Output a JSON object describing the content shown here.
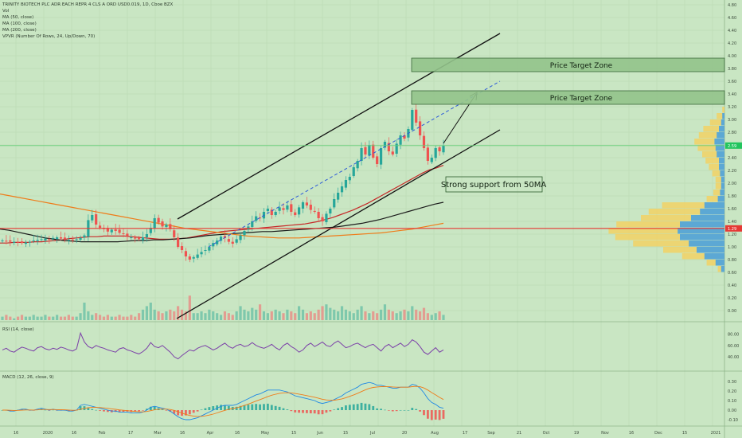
{
  "header": {
    "title": "TRINITY BIOTECH PLC ADR EACH REPR 4 CLS A ORD USD0.019, 1D, Cboe BZX",
    "indicators": [
      "Vol",
      "MA (50, close)",
      "MA (100, close)",
      "MA (200, close)",
      "VPVR (Number Of Rows, 24, Up/Down, 70)"
    ]
  },
  "panes": {
    "rsi_label": "RSI (14, close)",
    "macd_label": "MACD (12, 26, close, 9)"
  },
  "annotations": {
    "zone1": "Price Target Zone",
    "zone2": "Price Target Zone",
    "support": "Strong support from 50MA"
  },
  "price_badges": {
    "current": "2.59",
    "line": "1.29"
  },
  "colors": {
    "background": "#c9e6c3",
    "up": "#26a69a",
    "down": "#ef5350",
    "ma50": "#c62828",
    "ma100": "#1b1b1b",
    "ma200": "#ef7c1a",
    "rsi": "#7b3fa8",
    "macd": "#1e88e5",
    "signal": "#ef7c1a",
    "zone_fill": "#93c48b",
    "red_line": "#e53935",
    "green_line": "#66d07a"
  },
  "chart_data": {
    "type": "candlestick",
    "title": "TRINITY BIOTECH PLC ADR EACH REPR 4 CLS A ORD USD0.019, 1D, Cboe BZX",
    "price_axis": {
      "min": -0.2,
      "max": 4.8,
      "ticks": [
        "4.80",
        "4.60",
        "4.40",
        "4.20",
        "4.00",
        "3.80",
        "3.60",
        "3.40",
        "3.20",
        "3.00",
        "2.80",
        "2.60",
        "2.40",
        "2.20",
        "2.00",
        "1.80",
        "1.60",
        "1.40",
        "1.20",
        "1.00",
        "0.80",
        "0.60",
        "0.40",
        "0.20",
        "0.00"
      ]
    },
    "rsi_axis": {
      "ticks": [
        "80.00",
        "60.00",
        "40.00"
      ]
    },
    "macd_axis": {
      "ticks": [
        "0.30",
        "0.20",
        "0.10",
        "0.00",
        "-0.10"
      ]
    },
    "time_axis": [
      "16",
      "2020",
      "16",
      "Feb",
      "17",
      "Mar",
      "16",
      "Apr",
      "16",
      "May",
      "15",
      "Jun",
      "15",
      "Jul",
      "20",
      "Aug",
      "17",
      "Sep",
      "21",
      "Oct",
      "19",
      "Nov",
      "16",
      "Dec",
      "15",
      "2021"
    ],
    "closes": [
      1.1,
      1.09,
      1.08,
      1.08,
      1.07,
      1.06,
      1.07,
      1.08,
      1.1,
      1.11,
      1.12,
      1.13,
      1.12,
      1.14,
      1.15,
      1.13,
      1.12,
      1.11,
      1.1,
      1.12,
      1.14,
      1.18,
      1.42,
      1.5,
      1.35,
      1.3,
      1.28,
      1.24,
      1.27,
      1.25,
      1.22,
      1.2,
      1.17,
      1.15,
      1.13,
      1.12,
      1.15,
      1.2,
      1.3,
      1.45,
      1.38,
      1.32,
      1.35,
      1.28,
      1.15,
      1.0,
      0.95,
      0.85,
      0.8,
      0.84,
      0.88,
      0.92,
      0.95,
      1.0,
      1.06,
      1.1,
      1.16,
      1.14,
      1.08,
      1.05,
      1.12,
      1.18,
      1.25,
      1.32,
      1.4,
      1.48,
      1.45,
      1.55,
      1.6,
      1.5,
      1.55,
      1.62,
      1.58,
      1.65,
      1.55,
      1.5,
      1.62,
      1.7,
      1.65,
      1.58,
      1.55,
      1.45,
      1.4,
      1.52,
      1.6,
      1.75,
      1.85,
      1.95,
      2.05,
      2.1,
      2.25,
      2.35,
      2.55,
      2.45,
      2.6,
      2.4,
      2.3,
      2.55,
      2.65,
      2.5,
      2.45,
      2.62,
      2.75,
      2.7,
      2.85,
      3.15,
      2.95,
      2.75,
      2.55,
      2.35,
      2.4,
      2.55,
      2.5,
      2.59
    ],
    "ma50": [
      1.06,
      1.06,
      1.07,
      1.07,
      1.07,
      1.08,
      1.08,
      1.09,
      1.1,
      1.11,
      1.13,
      1.14,
      1.15,
      1.16,
      1.16,
      1.17,
      1.17,
      1.17,
      1.17,
      1.16,
      1.15,
      1.14,
      1.13,
      1.12,
      1.12,
      1.12,
      1.13,
      1.14,
      1.16,
      1.18,
      1.2,
      1.22,
      1.24,
      1.25,
      1.26,
      1.27,
      1.28,
      1.29,
      1.3,
      1.31,
      1.32,
      1.33,
      1.34,
      1.35,
      1.36,
      1.38,
      1.4,
      1.43,
      1.46,
      1.5,
      1.54,
      1.58,
      1.63,
      1.68,
      1.74,
      1.8,
      1.86,
      1.92,
      1.98,
      2.04,
      2.1,
      2.16,
      2.21,
      2.24,
      2.28
    ],
    "ma100": [
      1.28,
      1.26,
      1.23,
      1.2,
      1.17,
      1.14,
      1.12,
      1.1,
      1.09,
      1.08,
      1.08,
      1.08,
      1.08,
      1.08,
      1.09,
      1.1,
      1.1,
      1.11,
      1.11,
      1.12,
      1.13,
      1.14,
      1.16,
      1.18,
      1.19,
      1.2,
      1.21,
      1.22,
      1.23,
      1.24,
      1.24,
      1.25,
      1.26,
      1.27,
      1.28,
      1.29,
      1.3,
      1.31,
      1.33,
      1.35,
      1.37,
      1.4,
      1.43,
      1.47,
      1.51,
      1.55,
      1.59,
      1.63,
      1.67,
      1.7
    ],
    "ma200": [
      1.83,
      1.8,
      1.77,
      1.74,
      1.71,
      1.68,
      1.65,
      1.62,
      1.59,
      1.56,
      1.53,
      1.5,
      1.47,
      1.44,
      1.41,
      1.38,
      1.35,
      1.32,
      1.29,
      1.27,
      1.25,
      1.23,
      1.21,
      1.19,
      1.17,
      1.16,
      1.15,
      1.14,
      1.14,
      1.14,
      1.15,
      1.16,
      1.17,
      1.18,
      1.19,
      1.2,
      1.21,
      1.22,
      1.24,
      1.26,
      1.28,
      1.31,
      1.34,
      1.37
    ],
    "rsi": [
      52,
      55,
      50,
      48,
      53,
      57,
      55,
      52,
      50,
      56,
      58,
      54,
      52,
      55,
      53,
      57,
      55,
      52,
      50,
      54,
      82,
      66,
      58,
      55,
      60,
      57,
      55,
      52,
      50,
      48,
      54,
      56,
      52,
      50,
      47,
      45,
      49,
      55,
      65,
      58,
      56,
      60,
      54,
      48,
      40,
      36,
      42,
      47,
      52,
      50,
      55,
      58,
      60,
      56,
      52,
      55,
      60,
      64,
      58,
      55,
      60,
      62,
      58,
      60,
      65,
      60,
      57,
      55,
      58,
      62,
      56,
      52,
      60,
      64,
      58,
      54,
      48,
      52,
      60,
      64,
      58,
      62,
      66,
      60,
      58,
      64,
      68,
      62,
      56,
      58,
      62,
      64,
      60,
      56,
      60,
      62,
      56,
      50,
      58,
      62,
      56,
      60,
      64,
      58,
      62,
      70,
      66,
      58,
      48,
      44,
      50,
      56,
      48,
      52
    ],
    "macd": [
      0.0,
      0.0,
      -0.01,
      -0.01,
      0.0,
      0.01,
      0.01,
      0.0,
      0.0,
      0.01,
      0.02,
      0.01,
      0.0,
      0.01,
      0.0,
      0.0,
      0.0,
      -0.01,
      -0.01,
      0.0,
      0.05,
      0.06,
      0.05,
      0.04,
      0.03,
      0.02,
      0.01,
      0.0,
      -0.01,
      -0.01,
      -0.02,
      -0.02,
      -0.02,
      -0.03,
      -0.03,
      -0.03,
      -0.02,
      0.0,
      0.03,
      0.04,
      0.03,
      0.02,
      0.01,
      -0.01,
      -0.04,
      -0.07,
      -0.09,
      -0.1,
      -0.1,
      -0.09,
      -0.08,
      -0.06,
      -0.04,
      -0.02,
      0.0,
      0.02,
      0.04,
      0.05,
      0.05,
      0.05,
      0.06,
      0.08,
      0.1,
      0.12,
      0.14,
      0.16,
      0.17,
      0.19,
      0.21,
      0.21,
      0.21,
      0.21,
      0.2,
      0.19,
      0.17,
      0.15,
      0.14,
      0.13,
      0.12,
      0.11,
      0.1,
      0.08,
      0.07,
      0.08,
      0.09,
      0.11,
      0.13,
      0.15,
      0.18,
      0.2,
      0.22,
      0.24,
      0.27,
      0.28,
      0.29,
      0.28,
      0.26,
      0.26,
      0.25,
      0.24,
      0.23,
      0.23,
      0.24,
      0.24,
      0.24,
      0.27,
      0.26,
      0.23,
      0.18,
      0.12,
      0.08,
      0.06,
      0.03,
      0.02
    ],
    "volume": [
      2,
      3,
      2,
      1,
      2,
      3,
      2,
      2,
      3,
      2,
      2,
      3,
      2,
      2,
      3,
      2,
      2,
      3,
      2,
      2,
      4,
      10,
      5,
      3,
      4,
      3,
      2,
      3,
      2,
      2,
      3,
      2,
      2,
      3,
      2,
      4,
      6,
      8,
      10,
      6,
      5,
      4,
      5,
      6,
      5,
      8,
      6,
      5,
      14,
      4,
      4,
      5,
      4,
      6,
      5,
      4,
      3,
      5,
      4,
      3,
      5,
      8,
      6,
      5,
      7,
      6,
      9,
      5,
      4,
      5,
      6,
      5,
      4,
      6,
      5,
      4,
      8,
      6,
      4,
      5,
      4,
      6,
      8,
      9,
      7,
      6,
      5,
      8,
      6,
      5,
      4,
      6,
      8,
      5,
      4,
      5,
      4,
      6,
      9,
      6,
      5,
      4,
      5,
      6,
      5,
      8,
      6,
      5,
      7,
      4,
      3,
      4,
      5,
      3
    ]
  }
}
